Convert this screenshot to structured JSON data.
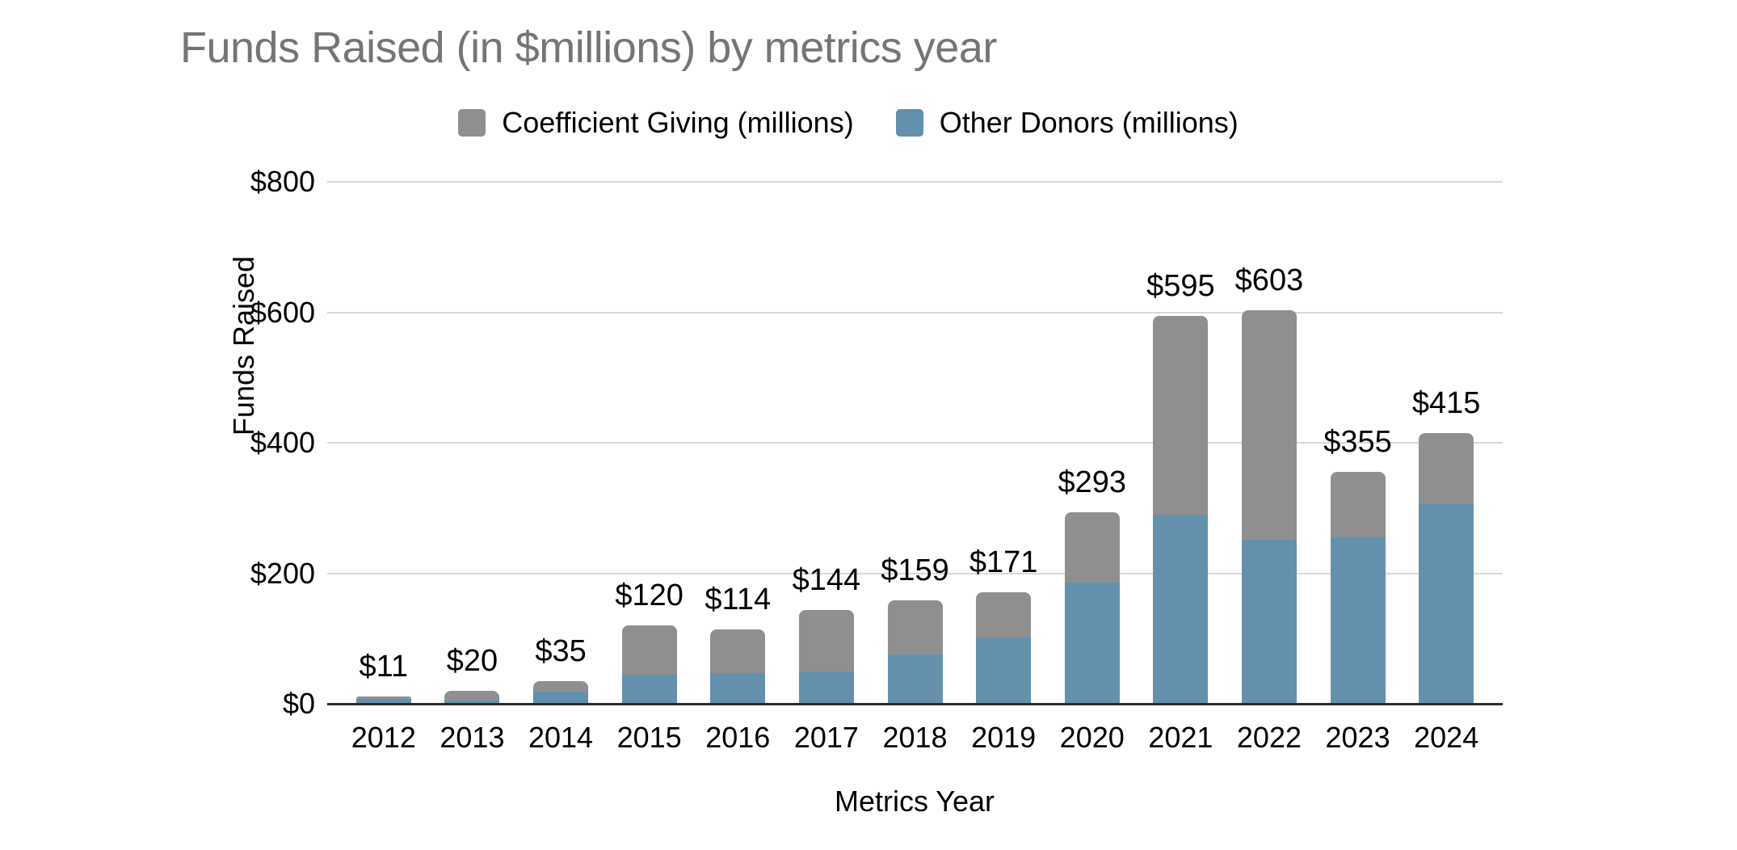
{
  "chart_data": {
    "type": "bar",
    "stacked": true,
    "title": "Funds Raised (in $millions) by metrics year",
    "xlabel": "Metrics Year",
    "ylabel": "Funds Raised",
    "categories": [
      "2012",
      "2013",
      "2014",
      "2015",
      "2016",
      "2017",
      "2018",
      "2019",
      "2020",
      "2021",
      "2022",
      "2023",
      "2024"
    ],
    "series": [
      {
        "name": "Coefficient Giving (millions)",
        "color": "#8f8f8f",
        "values": [
          3,
          15,
          17,
          75,
          67,
          94,
          84,
          70,
          107,
          305,
          352,
          100,
          109
        ]
      },
      {
        "name": "Other Donors (millions)",
        "color": "#6391ad",
        "values": [
          8,
          5,
          18,
          45,
          47,
          50,
          75,
          101,
          186,
          290,
          251,
          255,
          306
        ]
      }
    ],
    "stack_order_bottom_to_top": [
      "Other Donors (millions)",
      "Coefficient Giving (millions)"
    ],
    "totals": [
      11,
      20,
      35,
      120,
      114,
      144,
      159,
      171,
      293,
      595,
      603,
      355,
      415
    ],
    "total_labels": [
      "$11",
      "$20",
      "$35",
      "$120",
      "$114",
      "$144",
      "$159",
      "$171",
      "$293",
      "$595",
      "$603",
      "$355",
      "$415"
    ],
    "yticks": [
      {
        "label": "$0",
        "value": 0
      },
      {
        "label": "$200",
        "value": 200
      },
      {
        "label": "$400",
        "value": 400
      },
      {
        "label": "$600",
        "value": 600
      },
      {
        "label": "$800",
        "value": 800
      }
    ],
    "ylim": [
      0,
      800
    ],
    "grid": true,
    "legend_position": "top-center",
    "colors": {
      "title_text": "#757575",
      "axis_text": "#000000",
      "data_label_text": "#000000",
      "gridline": "#d8d8d8",
      "axis_line": "#2e2e2e",
      "background": "#ffffff"
    }
  }
}
